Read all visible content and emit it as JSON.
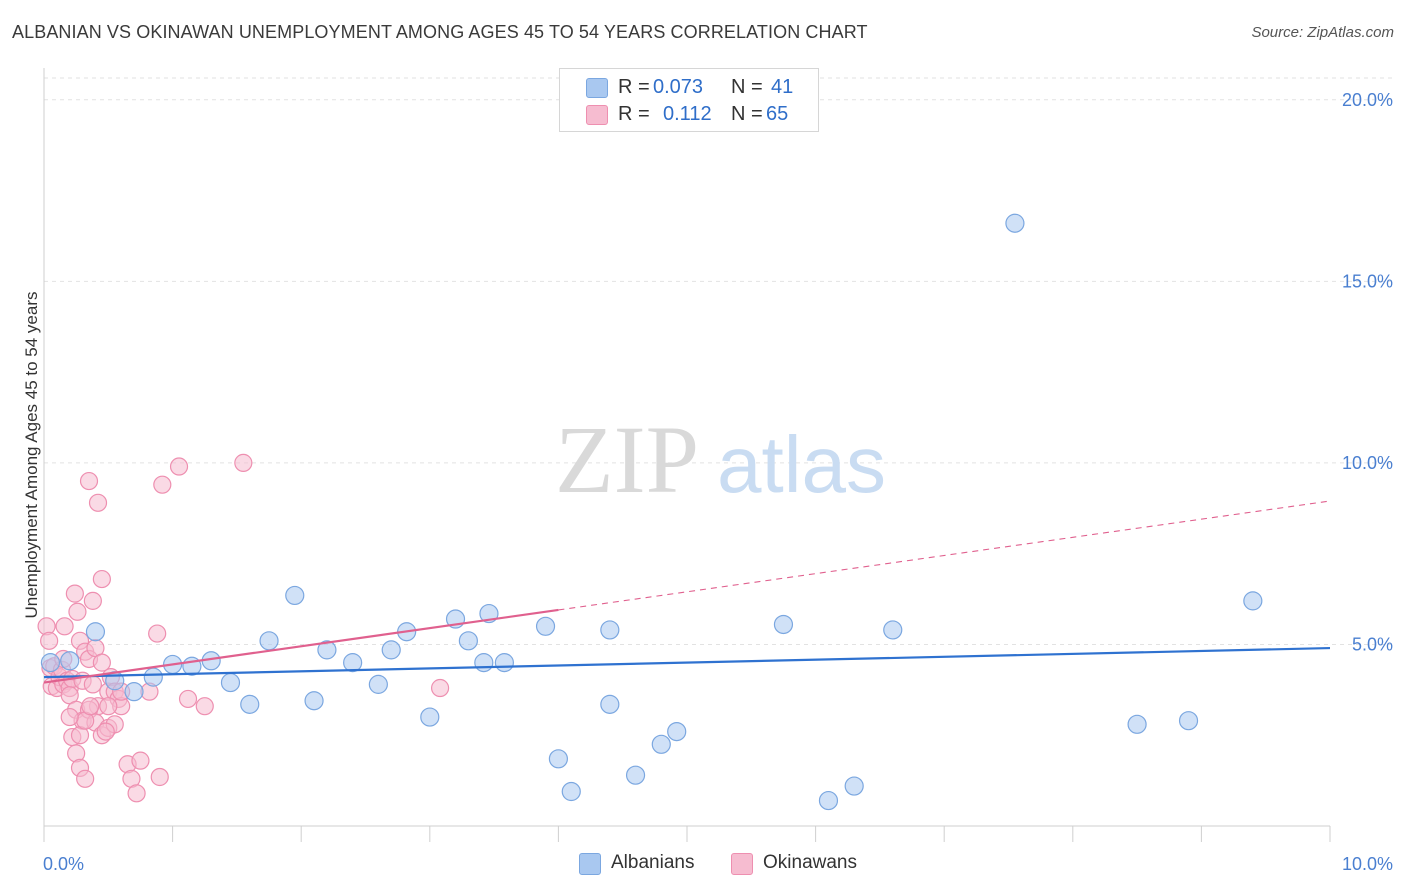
{
  "title": "ALBANIAN VS OKINAWAN UNEMPLOYMENT AMONG AGES 45 TO 54 YEARS CORRELATION CHART",
  "source": "Source: ZipAtlas.com",
  "watermark": {
    "zip": "ZIP",
    "atlas": "atlas"
  },
  "legend": {
    "albanians": {
      "r_label": "R =",
      "r_value": "0.073",
      "n_label": "N =",
      "n_value": "41"
    },
    "okinawans": {
      "r_label": "R =",
      "r_value": "0.112",
      "n_label": "N =",
      "n_value": "65"
    }
  },
  "colors": {
    "albanian_fill": "#a9c8f0",
    "albanian_stroke": "#7ba7e0",
    "albanian_line": "#2f72d0",
    "okinawan_fill": "#f6bcd0",
    "okinawan_stroke": "#ee8fb0",
    "okinawan_line": "#e0608e",
    "grid": "#e2e2e2",
    "tick_text": "#4a7fd0"
  },
  "chart_data": {
    "type": "scatter",
    "title": "ALBANIAN VS OKINAWAN UNEMPLOYMENT AMONG AGES 45 TO 54 YEARS CORRELATION CHART",
    "xlabel": "",
    "ylabel": "Unemployment Among Ages 45 to 54 years",
    "xlim": [
      0,
      10
    ],
    "ylim": [
      0,
      20.6
    ],
    "x_tick_labels": [
      "0.0%",
      "10.0%"
    ],
    "y_ticks": [
      5,
      10,
      15,
      20
    ],
    "y_tick_labels": [
      "5.0%",
      "10.0%",
      "15.0%",
      "20.0%"
    ],
    "grid": true,
    "legend_position": "top-center",
    "series_labels": [
      "Albanians",
      "Okinawans"
    ],
    "series": [
      {
        "name": "Albanians",
        "r": 0.073,
        "n": 41,
        "trend": {
          "x0": 0,
          "y0": 4.1,
          "x1": 10,
          "y1": 4.9
        },
        "points": [
          [
            0.05,
            4.5
          ],
          [
            0.2,
            4.55
          ],
          [
            0.4,
            5.35
          ],
          [
            0.55,
            4.0
          ],
          [
            0.7,
            3.7
          ],
          [
            0.85,
            4.1
          ],
          [
            1.0,
            4.45
          ],
          [
            1.15,
            4.4
          ],
          [
            1.3,
            4.55
          ],
          [
            1.45,
            3.95
          ],
          [
            1.6,
            3.35
          ],
          [
            1.75,
            5.1
          ],
          [
            1.95,
            6.35
          ],
          [
            2.1,
            3.45
          ],
          [
            2.2,
            4.85
          ],
          [
            2.4,
            4.5
          ],
          [
            2.6,
            3.9
          ],
          [
            2.7,
            4.85
          ],
          [
            2.82,
            5.35
          ],
          [
            3.0,
            3.0
          ],
          [
            3.2,
            5.7
          ],
          [
            3.3,
            5.1
          ],
          [
            3.42,
            4.5
          ],
          [
            3.46,
            5.85
          ],
          [
            3.58,
            4.5
          ],
          [
            3.9,
            5.5
          ],
          [
            4.0,
            1.85
          ],
          [
            4.1,
            0.95
          ],
          [
            4.4,
            5.4
          ],
          [
            4.4,
            3.35
          ],
          [
            4.6,
            1.4
          ],
          [
            4.8,
            2.25
          ],
          [
            4.92,
            2.6
          ],
          [
            5.75,
            5.55
          ],
          [
            6.1,
            0.7
          ],
          [
            6.3,
            1.1
          ],
          [
            6.6,
            5.4
          ],
          [
            7.55,
            16.6
          ],
          [
            8.5,
            2.8
          ],
          [
            8.9,
            2.9
          ],
          [
            9.4,
            6.2
          ]
        ]
      },
      {
        "name": "Okinawans",
        "r": 0.112,
        "n": 65,
        "trend": {
          "x0": 0,
          "y0": 3.95,
          "x1": 4.0,
          "y1": 5.95,
          "dash_x1": 10,
          "dash_y1": 8.95
        },
        "points": [
          [
            0.02,
            5.5
          ],
          [
            0.04,
            5.1
          ],
          [
            0.05,
            4.35
          ],
          [
            0.06,
            3.85
          ],
          [
            0.08,
            4.4
          ],
          [
            0.1,
            3.8
          ],
          [
            0.12,
            4.1
          ],
          [
            0.14,
            4.3
          ],
          [
            0.15,
            3.9
          ],
          [
            0.16,
            5.5
          ],
          [
            0.18,
            4.0
          ],
          [
            0.2,
            3.8
          ],
          [
            0.22,
            4.05
          ],
          [
            0.24,
            6.4
          ],
          [
            0.26,
            5.9
          ],
          [
            0.28,
            5.1
          ],
          [
            0.3,
            4.0
          ],
          [
            0.32,
            4.8
          ],
          [
            0.35,
            4.6
          ],
          [
            0.38,
            3.9
          ],
          [
            0.4,
            4.9
          ],
          [
            0.42,
            3.3
          ],
          [
            0.45,
            4.5
          ],
          [
            0.5,
            3.7
          ],
          [
            0.52,
            4.1
          ],
          [
            0.55,
            3.7
          ],
          [
            0.58,
            3.5
          ],
          [
            0.2,
            3.6
          ],
          [
            0.25,
            3.2
          ],
          [
            0.3,
            2.9
          ],
          [
            0.35,
            3.2
          ],
          [
            0.4,
            2.85
          ],
          [
            0.45,
            2.5
          ],
          [
            0.5,
            2.7
          ],
          [
            0.55,
            2.8
          ],
          [
            0.6,
            3.3
          ],
          [
            0.22,
            2.45
          ],
          [
            0.28,
            2.5
          ],
          [
            0.32,
            2.9
          ],
          [
            0.36,
            3.3
          ],
          [
            0.2,
            3.0
          ],
          [
            0.25,
            2.0
          ],
          [
            0.28,
            1.6
          ],
          [
            0.32,
            1.3
          ],
          [
            0.35,
            9.5
          ],
          [
            0.38,
            6.2
          ],
          [
            0.42,
            8.9
          ],
          [
            0.45,
            6.8
          ],
          [
            0.5,
            3.3
          ],
          [
            0.6,
            3.7
          ],
          [
            0.65,
            1.7
          ],
          [
            0.68,
            1.3
          ],
          [
            0.72,
            0.9
          ],
          [
            0.75,
            1.8
          ],
          [
            0.82,
            3.7
          ],
          [
            0.9,
            1.35
          ],
          [
            0.92,
            9.4
          ],
          [
            1.05,
            9.9
          ],
          [
            1.12,
            3.5
          ],
          [
            1.25,
            3.3
          ],
          [
            1.55,
            10.0
          ],
          [
            0.88,
            5.3
          ],
          [
            0.48,
            2.6
          ],
          [
            0.15,
            4.6
          ],
          [
            3.08,
            3.8
          ]
        ]
      }
    ]
  }
}
